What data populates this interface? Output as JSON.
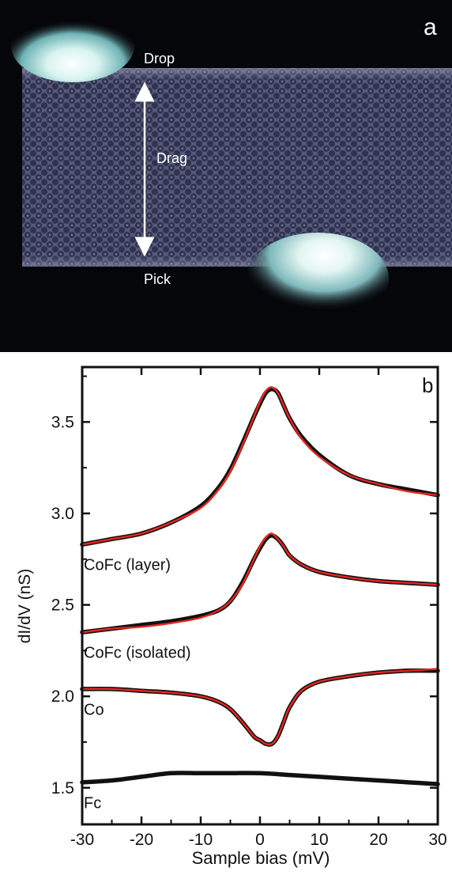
{
  "panel_a": {
    "panel_label": "a",
    "labels": {
      "drop": "Drop",
      "drag": "Drag",
      "pick": "Pick"
    },
    "colors": {
      "dark": "#05060a",
      "film": "#4f5270",
      "film_light": "#7d82a0",
      "hole": "#2f3250",
      "blob": "#ffffff",
      "blob_glow": "#8fd3d3"
    }
  },
  "chart_data": {
    "type": "line",
    "panel_label": "b",
    "xlabel": "Sample bias (mV)",
    "ylabel": "dI/dV (nS)",
    "xlim": [
      -30,
      30
    ],
    "ylim": [
      1.3,
      3.8
    ],
    "xticks": [
      -30,
      -20,
      -10,
      0,
      10,
      20,
      30
    ],
    "yticks": [
      1.5,
      2.0,
      2.5,
      3.0,
      3.5
    ],
    "ytick_labels": [
      "1.5",
      "2.0",
      "2.5",
      "3.0",
      "3.5"
    ],
    "grid": false,
    "colors": {
      "measured": "#111111",
      "fit": "#e8251e"
    },
    "series": [
      {
        "name": "CoFc (layer)",
        "label_position": {
          "x": -30,
          "y": 2.72
        },
        "data": [
          [
            -30,
            2.83
          ],
          [
            -25,
            2.86
          ],
          [
            -20,
            2.89
          ],
          [
            -15,
            2.95
          ],
          [
            -10,
            3.04
          ],
          [
            -7,
            3.14
          ],
          [
            -5,
            3.24
          ],
          [
            -3,
            3.38
          ],
          [
            -1,
            3.53
          ],
          [
            0,
            3.6
          ],
          [
            1,
            3.66
          ],
          [
            2,
            3.68
          ],
          [
            3,
            3.66
          ],
          [
            4,
            3.59
          ],
          [
            5,
            3.52
          ],
          [
            7,
            3.42
          ],
          [
            10,
            3.32
          ],
          [
            15,
            3.21
          ],
          [
            20,
            3.16
          ],
          [
            25,
            3.13
          ],
          [
            30,
            3.1
          ]
        ],
        "fit": [
          [
            -30,
            2.83
          ],
          [
            -25,
            2.86
          ],
          [
            -20,
            2.89
          ],
          [
            -15,
            2.95
          ],
          [
            -10,
            3.03
          ],
          [
            -7,
            3.13
          ],
          [
            -5,
            3.23
          ],
          [
            -3,
            3.37
          ],
          [
            -1,
            3.53
          ],
          [
            0,
            3.61
          ],
          [
            1,
            3.67
          ],
          [
            2,
            3.69
          ],
          [
            3,
            3.66
          ],
          [
            4,
            3.59
          ],
          [
            5,
            3.52
          ],
          [
            7,
            3.41
          ],
          [
            10,
            3.31
          ],
          [
            15,
            3.21
          ],
          [
            20,
            3.16
          ],
          [
            25,
            3.12
          ],
          [
            30,
            3.1
          ]
        ]
      },
      {
        "name": "CoFc (isolated)",
        "label_position": {
          "x": -30,
          "y": 2.24
        },
        "data": [
          [
            -30,
            2.35
          ],
          [
            -25,
            2.37
          ],
          [
            -20,
            2.39
          ],
          [
            -15,
            2.41
          ],
          [
            -10,
            2.44
          ],
          [
            -7,
            2.47
          ],
          [
            -5,
            2.52
          ],
          [
            -3,
            2.62
          ],
          [
            -1,
            2.75
          ],
          [
            0,
            2.81
          ],
          [
            1,
            2.86
          ],
          [
            2,
            2.88
          ],
          [
            3,
            2.86
          ],
          [
            4,
            2.82
          ],
          [
            5,
            2.77
          ],
          [
            7,
            2.72
          ],
          [
            10,
            2.68
          ],
          [
            15,
            2.65
          ],
          [
            20,
            2.63
          ],
          [
            25,
            2.62
          ],
          [
            30,
            2.61
          ]
        ],
        "fit": [
          [
            -30,
            2.35
          ],
          [
            -25,
            2.37
          ],
          [
            -20,
            2.38
          ],
          [
            -15,
            2.4
          ],
          [
            -10,
            2.43
          ],
          [
            -7,
            2.47
          ],
          [
            -5,
            2.52
          ],
          [
            -3,
            2.61
          ],
          [
            -1,
            2.75
          ],
          [
            0,
            2.82
          ],
          [
            1,
            2.87
          ],
          [
            2,
            2.89
          ],
          [
            3,
            2.86
          ],
          [
            4,
            2.82
          ],
          [
            5,
            2.77
          ],
          [
            7,
            2.72
          ],
          [
            10,
            2.68
          ],
          [
            15,
            2.65
          ],
          [
            20,
            2.63
          ],
          [
            25,
            2.62
          ],
          [
            30,
            2.61
          ]
        ]
      },
      {
        "name": "Co",
        "label_position": {
          "x": -30,
          "y": 1.93
        },
        "data": [
          [
            -30,
            2.04
          ],
          [
            -25,
            2.04
          ],
          [
            -20,
            2.03
          ],
          [
            -15,
            2.02
          ],
          [
            -10,
            2.0
          ],
          [
            -7,
            1.97
          ],
          [
            -5,
            1.93
          ],
          [
            -3,
            1.86
          ],
          [
            -1,
            1.78
          ],
          [
            0,
            1.76
          ],
          [
            1,
            1.74
          ],
          [
            2,
            1.74
          ],
          [
            3,
            1.78
          ],
          [
            4,
            1.86
          ],
          [
            5,
            1.94
          ],
          [
            7,
            2.03
          ],
          [
            10,
            2.08
          ],
          [
            15,
            2.11
          ],
          [
            20,
            2.13
          ],
          [
            25,
            2.14
          ],
          [
            30,
            2.14
          ]
        ],
        "fit": [
          [
            -30,
            2.04
          ],
          [
            -25,
            2.04
          ],
          [
            -20,
            2.03
          ],
          [
            -15,
            2.02
          ],
          [
            -10,
            2.0
          ],
          [
            -7,
            1.97
          ],
          [
            -5,
            1.93
          ],
          [
            -3,
            1.86
          ],
          [
            -1,
            1.78
          ],
          [
            0,
            1.76
          ],
          [
            1,
            1.74
          ],
          [
            2,
            1.74
          ],
          [
            3,
            1.78
          ],
          [
            4,
            1.86
          ],
          [
            5,
            1.94
          ],
          [
            7,
            2.03
          ],
          [
            10,
            2.08
          ],
          [
            15,
            2.11
          ],
          [
            20,
            2.13
          ],
          [
            25,
            2.14
          ],
          [
            30,
            2.15
          ]
        ]
      },
      {
        "name": "Fc",
        "label_position": {
          "x": -30,
          "y": 1.42
        },
        "data": [
          [
            -30,
            1.53
          ],
          [
            -25,
            1.54
          ],
          [
            -20,
            1.56
          ],
          [
            -15,
            1.58
          ],
          [
            -10,
            1.58
          ],
          [
            -5,
            1.58
          ],
          [
            0,
            1.58
          ],
          [
            5,
            1.57
          ],
          [
            10,
            1.56
          ],
          [
            15,
            1.55
          ],
          [
            20,
            1.54
          ],
          [
            25,
            1.53
          ],
          [
            30,
            1.52
          ]
        ]
      }
    ]
  }
}
